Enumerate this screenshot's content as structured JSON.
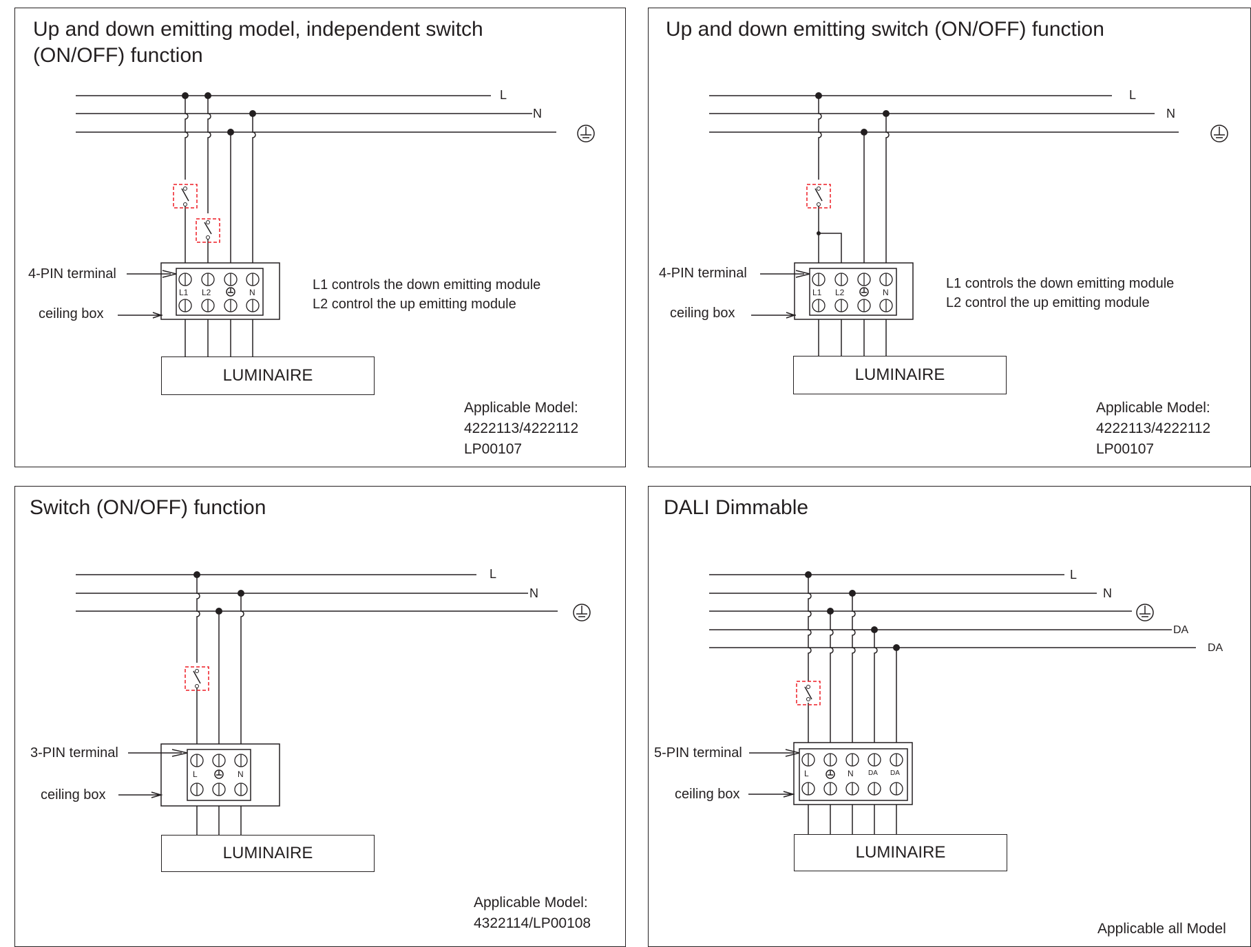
{
  "panels": [
    {
      "title": "Up and down emitting model, independent switch\n(ON/OFF) function",
      "wires": {
        "L": "L",
        "N": "N"
      },
      "terminal_label": "4-PIN terminal",
      "box_label": "ceiling box",
      "pins": [
        "L1",
        "L2",
        "N"
      ],
      "notes": "L1 controls the down emitting module\nL2 control the up emitting module",
      "luminaire": "LUMINAIRE",
      "model": "Applicable Model:\n4222113/4222112\nLP00107"
    },
    {
      "title": "Up and down emitting switch (ON/OFF) function",
      "wires": {
        "L": "L",
        "N": "N"
      },
      "terminal_label": "4-PIN terminal",
      "box_label": "ceiling box",
      "pins": [
        "L1",
        "L2",
        "N"
      ],
      "notes": "L1 controls the down emitting module\nL2 control the up emitting module",
      "luminaire": "LUMINAIRE",
      "model": "Applicable Model:\n4222113/4222112\nLP00107"
    },
    {
      "title": "Switch (ON/OFF) function",
      "wires": {
        "L": "L",
        "N": "N"
      },
      "terminal_label": "3-PIN terminal",
      "box_label": "ceiling box",
      "pins": [
        "L",
        "N"
      ],
      "luminaire": "LUMINAIRE",
      "model": "Applicable Model:\n4322114/LP00108"
    },
    {
      "title": "DALI Dimmable",
      "wires": {
        "L": "L",
        "N": "N",
        "DA1": "DA",
        "DA2": "DA"
      },
      "terminal_label": "5-PIN terminal",
      "box_label": "ceiling box",
      "pins": [
        "L",
        "N",
        "DA",
        "DA"
      ],
      "luminaire": "LUMINAIRE",
      "model": "Applicable all Model"
    }
  ],
  "colors": {
    "line": "#231f20",
    "switch_box": "#ed1c24"
  },
  "icons": [
    "ground-symbol-icon",
    "switch-icon",
    "screw-icon",
    "arrow-icon"
  ]
}
